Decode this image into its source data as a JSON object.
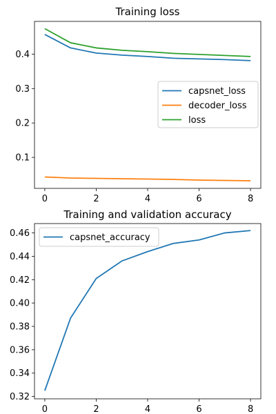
{
  "chart_data": [
    {
      "type": "line",
      "title": "Training loss",
      "xlabel": "",
      "ylabel": "",
      "x": [
        0,
        1,
        2,
        3,
        4,
        5,
        6,
        7,
        8
      ],
      "xlim": [
        -0.4,
        8.4
      ],
      "ylim": [
        0.01,
        0.495
      ],
      "xticks": [
        0,
        2,
        4,
        6,
        8
      ],
      "yticks": [
        0.1,
        0.2,
        0.3,
        0.4
      ],
      "ytick_labels": [
        "0.1",
        "0.2",
        "0.3",
        "0.4"
      ],
      "xtick_labels": [
        "0",
        "2",
        "4",
        "6",
        "8"
      ],
      "grid": false,
      "legend_position": "center-right",
      "series": [
        {
          "name": "capsnet_loss",
          "color": "#1f77b4",
          "values": [
            0.457,
            0.418,
            0.403,
            0.397,
            0.393,
            0.388,
            0.386,
            0.384,
            0.381
          ]
        },
        {
          "name": "decoder_loss",
          "color": "#ff7f0e",
          "values": [
            0.043,
            0.04,
            0.039,
            0.038,
            0.037,
            0.036,
            0.034,
            0.033,
            0.032
          ]
        },
        {
          "name": "loss",
          "color": "#2ca02c",
          "values": [
            0.474,
            0.433,
            0.418,
            0.411,
            0.407,
            0.402,
            0.399,
            0.396,
            0.393
          ]
        }
      ]
    },
    {
      "type": "line",
      "title": "Training and validation accuracy",
      "xlabel": "",
      "ylabel": "",
      "x": [
        0,
        1,
        2,
        3,
        4,
        5,
        6,
        7,
        8
      ],
      "xlim": [
        -0.4,
        8.4
      ],
      "ylim": [
        0.318,
        0.468
      ],
      "xticks": [
        0,
        2,
        4,
        6,
        8
      ],
      "yticks": [
        0.32,
        0.34,
        0.36,
        0.38,
        0.4,
        0.42,
        0.44,
        0.46
      ],
      "ytick_labels": [
        "0.32",
        "0.34",
        "0.36",
        "0.38",
        "0.40",
        "0.42",
        "0.44",
        "0.46"
      ],
      "xtick_labels": [
        "0",
        "2",
        "4",
        "6",
        "8"
      ],
      "grid": false,
      "legend_position": "top-left",
      "series": [
        {
          "name": "capsnet_accuracy",
          "color": "#1f77b4",
          "values": [
            0.325,
            0.387,
            0.421,
            0.436,
            0.444,
            0.451,
            0.454,
            0.46,
            0.462
          ]
        }
      ]
    }
  ]
}
